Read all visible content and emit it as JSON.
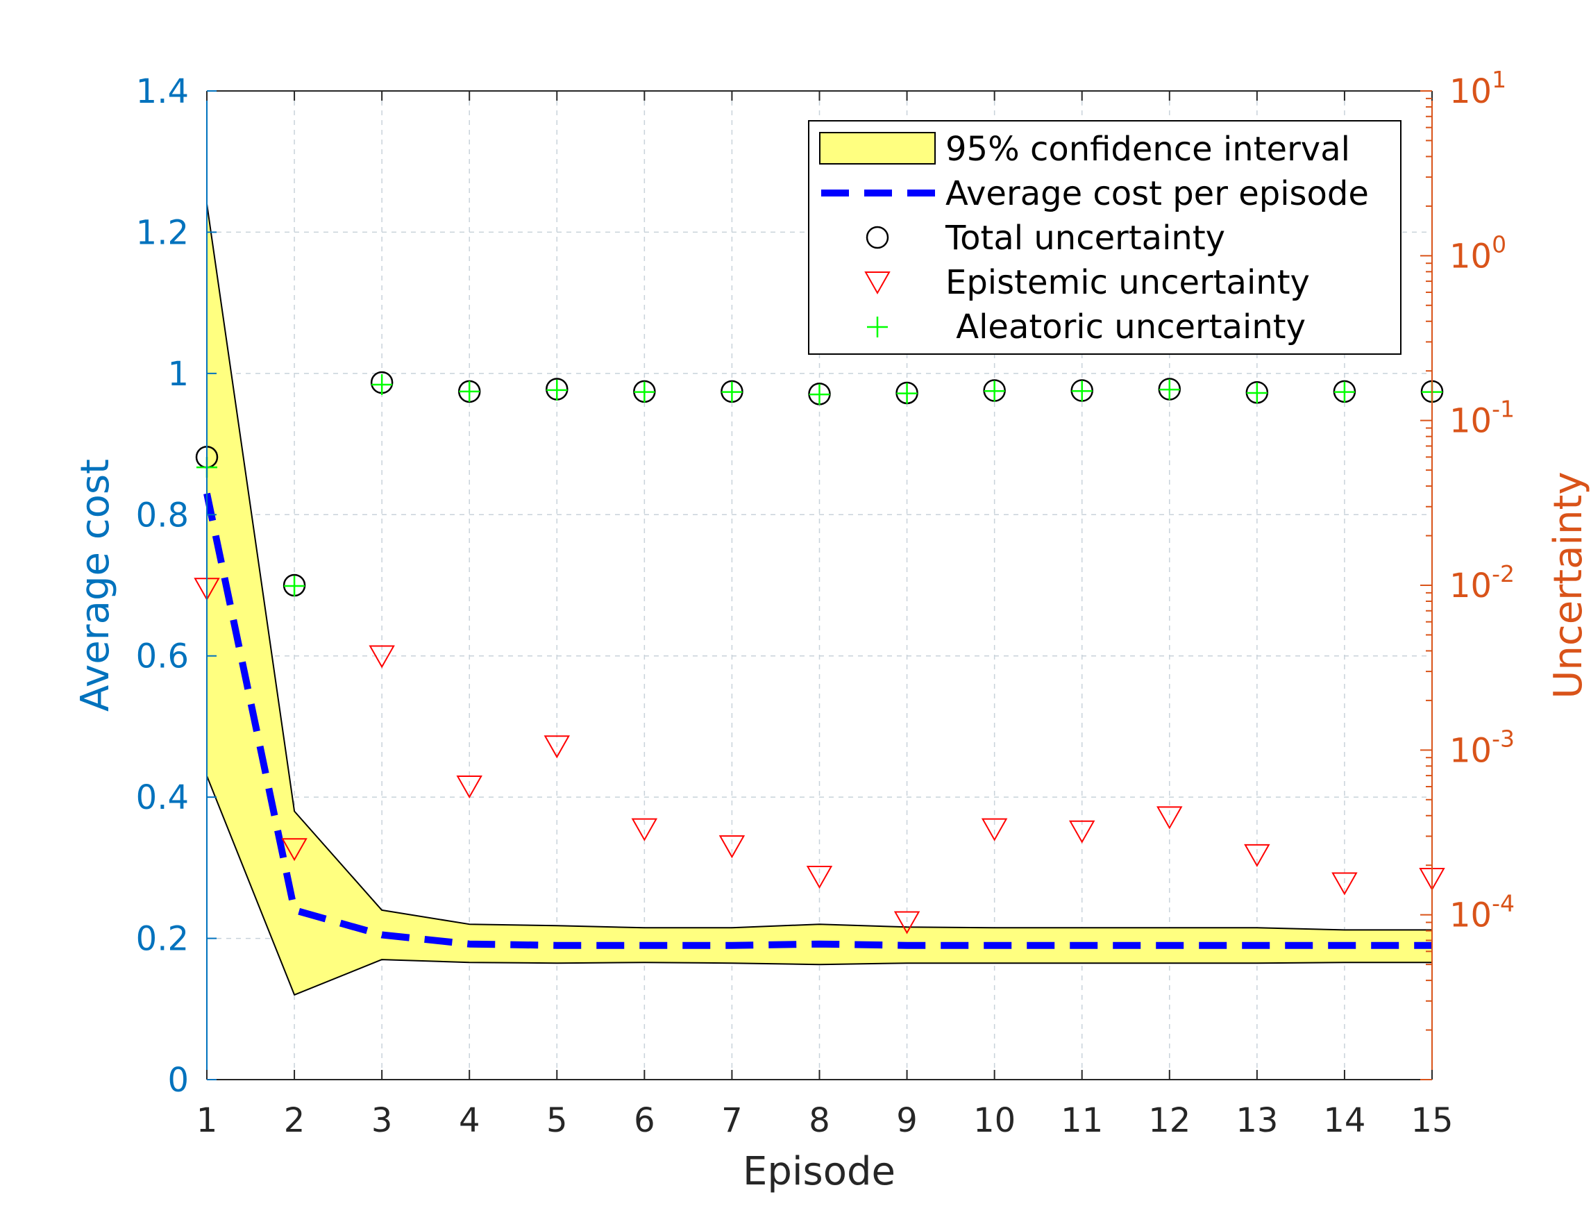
{
  "chart_data": {
    "type": "line",
    "x": [
      1,
      2,
      3,
      4,
      5,
      6,
      7,
      8,
      9,
      10,
      11,
      12,
      13,
      14,
      15
    ],
    "xlabel": "Episode",
    "xlim": [
      1,
      15
    ],
    "xticks": [
      "1",
      "2",
      "3",
      "4",
      "5",
      "6",
      "7",
      "8",
      "9",
      "10",
      "11",
      "12",
      "13",
      "14",
      "15"
    ],
    "ylabel_left": "Average cost",
    "ylim_left": [
      0,
      1.4
    ],
    "yticks_left": [
      "0",
      "0.2",
      "0.4",
      "0.6",
      "0.8",
      "1",
      "1.2",
      "1.4"
    ],
    "ylabel_right": "Uncertainty",
    "yscale_right": "log",
    "ylim_right": [
      1e-05,
      10
    ],
    "yticks_right": [
      {
        "base": "10",
        "exp": "-4",
        "value": 0.0001
      },
      {
        "base": "10",
        "exp": "-3",
        "value": 0.001
      },
      {
        "base": "10",
        "exp": "-2",
        "value": 0.01
      },
      {
        "base": "10",
        "exp": "-1",
        "value": 0.1
      },
      {
        "base": "10",
        "exp": "0",
        "value": 1
      },
      {
        "base": "10",
        "exp": "1",
        "value": 10
      }
    ],
    "grid": true,
    "legend_position": "top-right",
    "series": [
      {
        "name": "95% confidence interval",
        "type": "area",
        "axis": "left",
        "color": "#FFFF80",
        "upper": [
          1.24,
          0.38,
          0.24,
          0.22,
          0.218,
          0.215,
          0.215,
          0.22,
          0.216,
          0.215,
          0.215,
          0.215,
          0.215,
          0.212,
          0.212
        ],
        "lower": [
          0.43,
          0.12,
          0.17,
          0.166,
          0.165,
          0.166,
          0.165,
          0.163,
          0.165,
          0.165,
          0.165,
          0.165,
          0.165,
          0.166,
          0.166
        ]
      },
      {
        "name": "Average cost per episode",
        "type": "line",
        "axis": "left",
        "color": "#0000FF",
        "values": [
          0.83,
          0.24,
          0.205,
          0.192,
          0.19,
          0.19,
          0.19,
          0.192,
          0.19,
          0.19,
          0.19,
          0.19,
          0.19,
          0.19,
          0.19
        ]
      },
      {
        "name": "Total uncertainty",
        "type": "scatter",
        "marker": "circle",
        "axis": "right",
        "color": "#000000",
        "values": [
          0.06,
          0.01,
          0.17,
          0.15,
          0.155,
          0.15,
          0.15,
          0.145,
          0.147,
          0.152,
          0.152,
          0.155,
          0.148,
          0.15,
          0.15
        ]
      },
      {
        "name": "Epistemic uncertainty",
        "type": "scatter",
        "marker": "triangle-down",
        "axis": "right",
        "color": "#FF0000",
        "values": [
          0.0095,
          0.00025,
          0.0037,
          0.0006,
          0.00105,
          0.00033,
          0.00026,
          0.00017,
          9e-05,
          0.00033,
          0.00032,
          0.00039,
          0.00023,
          0.000155,
          0.000165
        ]
      },
      {
        "name": " Aleatoric uncertainty",
        "type": "scatter",
        "marker": "plus",
        "axis": "right",
        "color": "#00FF00",
        "values": [
          0.052,
          0.0099,
          0.165,
          0.15,
          0.153,
          0.149,
          0.149,
          0.144,
          0.146,
          0.151,
          0.151,
          0.154,
          0.147,
          0.149,
          0.149
        ]
      }
    ]
  }
}
